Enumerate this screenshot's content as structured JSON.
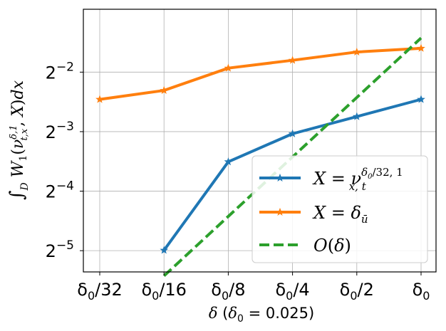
{
  "chart_data": {
    "type": "line",
    "y_scale": "log2",
    "grid": true,
    "legend_position": "lower-right",
    "xlabel": "δ (δ₀ = 0.025)",
    "ylabel": "∫D W1(νδ,1t,x, X)dx",
    "x_tick_labels": [
      "δ0/32",
      "δ0/16",
      "δ0/8",
      "δ0/4",
      "δ0/2",
      "δ0"
    ],
    "x_values": [
      0.00078125,
      0.0015625,
      0.003125,
      0.00625,
      0.0125,
      0.025
    ],
    "y_tick_labels": [
      "2-2",
      "2-3",
      "2-4",
      "2-5"
    ],
    "y_tick_values": [
      0.25,
      0.125,
      0.0625,
      0.03125
    ],
    "ylim": [
      0.0244,
      0.52
    ],
    "series": [
      {
        "name": "X = νx,t δ0/32,1",
        "color": "#1f77b4",
        "style": "solid",
        "marker": "star",
        "points": [
          [
            0.0015625,
            0.0314
          ],
          [
            0.003125,
            0.088
          ],
          [
            0.00625,
            0.122
          ],
          [
            0.0125,
            0.149
          ],
          [
            0.025,
            0.182
          ]
        ]
      },
      {
        "name": "X = δū",
        "color": "#ff7f0e",
        "style": "solid",
        "marker": "star",
        "points": [
          [
            0.00078125,
            0.182
          ],
          [
            0.0015625,
            0.202
          ],
          [
            0.003125,
            0.262
          ],
          [
            0.00625,
            0.287
          ],
          [
            0.0125,
            0.316
          ],
          [
            0.025,
            0.33
          ]
        ]
      },
      {
        "name": "O(δ)",
        "color": "#2ca02c",
        "style": "dashed",
        "marker": "none",
        "points": [
          [
            0.0015625,
            0.0233
          ],
          [
            0.025,
            0.372
          ]
        ]
      }
    ]
  }
}
